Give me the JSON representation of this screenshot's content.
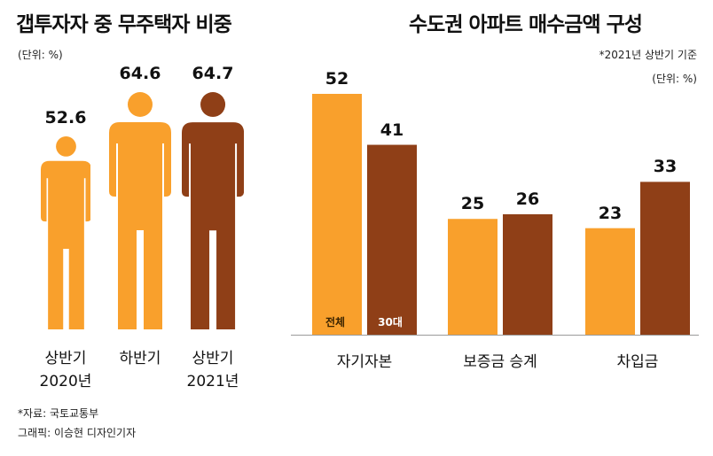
{
  "colors": {
    "orange": "#f9a02c",
    "brown": "#8f3f17",
    "axis": "#9a9a9a"
  },
  "left_panel": {
    "title": "갭투자자 중 무주택자 비중",
    "unit": "(단위: %)"
  },
  "right_panel": {
    "title": "수도권 아파트 매수금액 구성",
    "note": "*2021년 상반기 기준",
    "unit": "(단위: %)",
    "legend_all": "전체",
    "legend_30s": "30대"
  },
  "source": "*자료: 국토교통부",
  "credit": "그래픽: 이승현 디자인기자",
  "chart_data": [
    {
      "type": "bar",
      "title": "갭투자자 중 무주택자 비중",
      "unit": "(단위: %)",
      "categories": [
        [
          "상반기",
          "2020년"
        ],
        [
          "하반기",
          ""
        ],
        [
          "상반기",
          "2021년"
        ]
      ],
      "values": [
        52.6,
        64.6,
        64.7
      ],
      "value_labels": [
        "52.6",
        "64.6",
        "64.7"
      ],
      "colors": [
        "#f9a02c",
        "#f9a02c",
        "#8f3f17"
      ],
      "mark": "person-icon",
      "ylim": [
        0,
        70
      ]
    },
    {
      "type": "bar",
      "title": "수도권 아파트 매수금액 구성",
      "unit": "(단위: %)",
      "categories": [
        "자기자본",
        "보증금 승계",
        "차입금"
      ],
      "series": [
        {
          "name": "전체",
          "values": [
            52,
            25,
            23
          ],
          "color": "#f9a02c"
        },
        {
          "name": "30대",
          "values": [
            41,
            26,
            33
          ],
          "color": "#8f3f17"
        }
      ],
      "ylim": [
        0,
        60
      ],
      "grid": false,
      "legend": "inside-first-bars"
    }
  ]
}
